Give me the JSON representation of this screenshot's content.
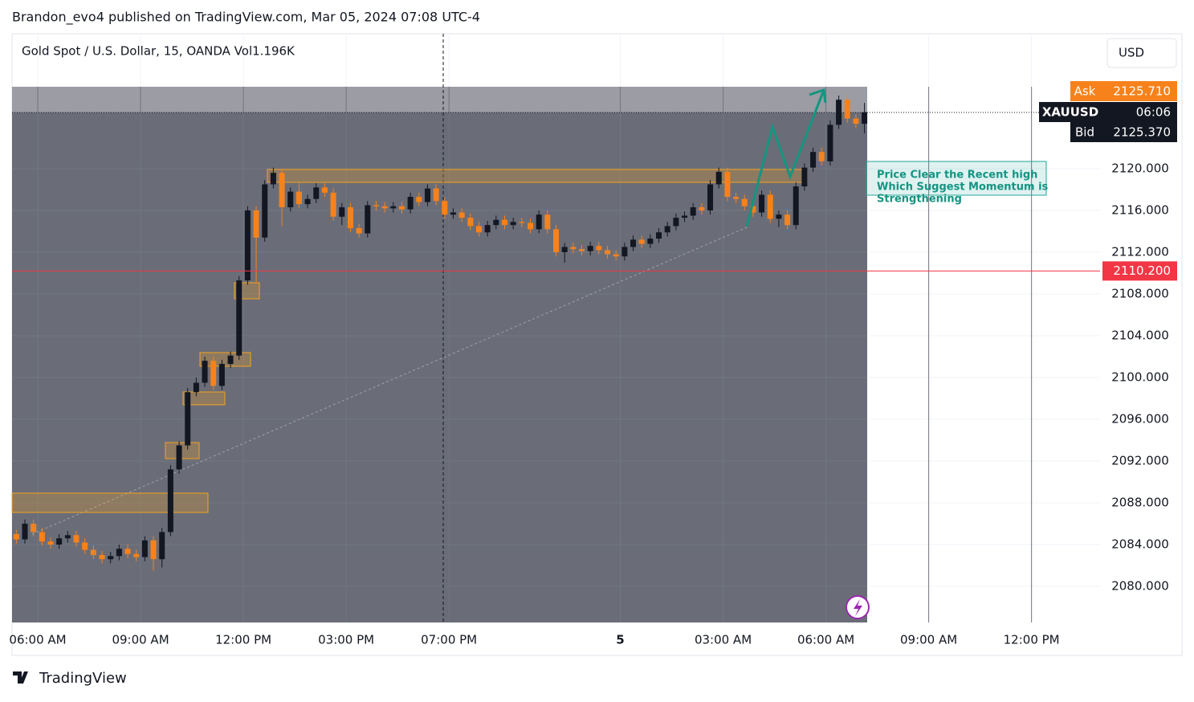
{
  "header": "Brandon_evo4 published on TradingView.com, Mar 05, 2024 07:08 UTC-4",
  "logo": "TradingView",
  "currency_button": "USD",
  "annotation": [
    "Price Clear the Recent high",
    "Which Suggest Momentum is",
    "Strengthening"
  ],
  "price_labels": {
    "ask_name": "Ask",
    "ask": "2125.710",
    "symbol": "XAUUSD",
    "countdown": "06:06",
    "bid_name": "Bid",
    "bid": "2125.370"
  },
  "chart_data": {
    "type": "candlestick",
    "title": "Gold Spot / U.S. Dollar, 15, OANDA  Vol1.196K",
    "up_color": "#131722",
    "down_color": "#f7821b",
    "xlim": [
      0,
      127
    ],
    "xticks": [
      {
        "value": 3,
        "label": "06:00 AM"
      },
      {
        "value": 15,
        "label": "09:00 AM"
      },
      {
        "value": 27,
        "label": "12:00 PM"
      },
      {
        "value": 39,
        "label": "03:00 PM"
      },
      {
        "value": 51,
        "label": "07:00 PM"
      },
      {
        "value": 71,
        "label": "5"
      },
      {
        "value": 83,
        "label": "03:00 AM"
      },
      {
        "value": 95,
        "label": "06:00 AM"
      },
      {
        "value": 107,
        "label": "09:00 AM"
      },
      {
        "value": 119,
        "label": "12:00 PM"
      }
    ],
    "ylim": [
      2076.54,
      2132.92
    ],
    "yticks": [
      {
        "value": 2080,
        "label": "2080.000"
      },
      {
        "value": 2084,
        "label": "2084.000"
      },
      {
        "value": 2088,
        "label": "2088.000"
      },
      {
        "value": 2092,
        "label": "2092.000"
      },
      {
        "value": 2096,
        "label": "2096.000"
      },
      {
        "value": 2100,
        "label": "2100.000"
      },
      {
        "value": 2104,
        "label": "2104.000"
      },
      {
        "value": 2108,
        "label": "2108.000"
      },
      {
        "value": 2112,
        "label": "2112.000"
      },
      {
        "value": 2116,
        "label": "2116.000"
      },
      {
        "value": 2120,
        "label": "2120.000"
      }
    ],
    "grid": true,
    "price_line": {
      "value": 2110.2,
      "label": "2110.200",
      "color": "#f23645"
    },
    "open": [
      2085,
      2084.5,
      2086,
      2085.2,
      2084.3,
      2084,
      2084.6,
      2084.9,
      2084.2,
      2083.5,
      2083,
      2082.6,
      2082.9,
      2083.6,
      2083.1,
      2082.8,
      2084.4,
      2082.6,
      2085.2,
      2091.2,
      2093.5,
      2098.6,
      2099.5,
      2101.6,
      2099.2,
      2101.3,
      2102.1,
      2109.3,
      2116,
      2113.4,
      2118.5,
      2119.6,
      2116.3,
      2117.8,
      2116.6,
      2117.1,
      2118.2,
      2117.7,
      2115.4,
      2116.3,
      2114.3,
      2113.8,
      2116.5,
      2116.4,
      2116.2,
      2116.4,
      2116.1,
      2117.3,
      2116.8,
      2118.1,
      2116.9,
      2115.6,
      2115.8,
      2115.3,
      2114.5,
      2113.9,
      2114.6,
      2115.1,
      2114.6,
      2114.9,
      2114.8,
      2114.2,
      2115.6,
      2114.2,
      2112,
      2112.5,
      2112.3,
      2112.1,
      2112.6,
      2112.2,
      2111.8,
      2111.6,
      2112.5,
      2113.2,
      2112.8,
      2113.3,
      2113.9,
      2114.5,
      2115.3,
      2115.5,
      2116.3,
      2116,
      2118.5,
      2119.7,
      2117.3,
      2117.1,
      2116.4,
      2115.8,
      2117.5,
      2115.2,
      2115.6,
      2114.6,
      2118.3,
      2120.1,
      2121.6,
      2120.7,
      2124.2,
      2126.6,
      2124.8,
      2124.3
    ],
    "high": [
      2085.4,
      2086.4,
      2086.4,
      2085.6,
      2084.7,
      2085,
      2085.3,
      2085.3,
      2084.6,
      2083.9,
      2083.4,
      2083.3,
      2084,
      2084,
      2083.5,
      2084.8,
      2084.8,
      2085.6,
      2091.6,
      2093.9,
      2099,
      2100,
      2102,
      2102,
      2101.7,
      2102.5,
      2109.7,
      2116.4,
      2116.4,
      2118.9,
      2120.1,
      2120,
      2118.2,
      2118.6,
      2117.5,
      2118.6,
      2118.6,
      2118.1,
      2116.7,
      2116.7,
      2114.7,
      2116.9,
      2116.9,
      2116.8,
      2116.8,
      2116.8,
      2117.7,
      2117.7,
      2118.5,
      2118.5,
      2117.3,
      2116.2,
      2116.2,
      2115.7,
      2114.9,
      2115,
      2115.5,
      2115.5,
      2115.3,
      2115.3,
      2115.2,
      2116,
      2116,
      2114.6,
      2112.9,
      2112.9,
      2112.7,
      2113,
      2113,
      2112.6,
      2112.2,
      2112.9,
      2113.6,
      2113.6,
      2113.7,
      2114.3,
      2114.9,
      2115.7,
      2115.9,
      2116.7,
      2116.7,
      2118.9,
      2120.1,
      2120.1,
      2117.7,
      2117.5,
      2116.8,
      2117.9,
      2117.9,
      2116,
      2116,
      2118.7,
      2120.5,
      2122,
      2122,
      2124.6,
      2127,
      2127,
      2125.2,
      2126.3
    ],
    "low": [
      2084.1,
      2084.1,
      2084.8,
      2083.9,
      2083.6,
      2083.6,
      2084.2,
      2083.8,
      2083.1,
      2082.6,
      2082.2,
      2082.2,
      2082.5,
      2082.7,
      2082.4,
      2082.4,
      2081.5,
      2081.8,
      2084.8,
      2090.8,
      2093.1,
      2098.2,
      2099.1,
      2098.8,
      2098.8,
      2100.9,
      2101.7,
      2108.9,
      2109,
      2113,
      2118.1,
      2114.5,
      2115.9,
      2116.2,
      2116.2,
      2116.7,
      2117.3,
      2115,
      2114.6,
      2113.9,
      2113.4,
      2113.4,
      2116,
      2115.8,
      2115.8,
      2115.7,
      2115.7,
      2116.4,
      2116.4,
      2116.5,
      2115.2,
      2115.2,
      2114.9,
      2114.1,
      2113.5,
      2113.5,
      2114.2,
      2114.2,
      2114.2,
      2114.4,
      2113.8,
      2113.8,
      2113.8,
      2111.6,
      2111,
      2111.9,
      2111.7,
      2111.7,
      2111.8,
      2111.4,
      2111.2,
      2111.2,
      2112.1,
      2112.4,
      2112.4,
      2112.9,
      2113.5,
      2114.1,
      2114.9,
      2115.1,
      2115.6,
      2115.6,
      2118.1,
      2116.9,
      2116.7,
      2116,
      2115.4,
      2115.4,
      2114.8,
      2114.4,
      2114.2,
      2114.2,
      2117.9,
      2119.7,
      2120.3,
      2120.3,
      2123.8,
      2124.4,
      2123.9,
      2123.4
    ],
    "close": [
      2084.5,
      2086,
      2085.2,
      2084.3,
      2084,
      2084.6,
      2084.9,
      2084.2,
      2083.5,
      2083,
      2082.6,
      2082.9,
      2083.6,
      2083.1,
      2082.8,
      2084.4,
      2082.6,
      2085.2,
      2091.2,
      2093.5,
      2098.6,
      2099.5,
      2101.6,
      2099.2,
      2101.3,
      2102.1,
      2109.3,
      2116,
      2113.4,
      2118.5,
      2119.6,
      2116.3,
      2117.8,
      2116.6,
      2117.1,
      2118.2,
      2117.7,
      2115.4,
      2116.3,
      2114.3,
      2113.8,
      2116.5,
      2116.4,
      2116.2,
      2116.4,
      2116.1,
      2117.3,
      2116.8,
      2118.1,
      2116.9,
      2115.6,
      2115.8,
      2115.3,
      2114.5,
      2113.9,
      2114.6,
      2115.1,
      2114.6,
      2114.9,
      2114.8,
      2114.2,
      2115.6,
      2114.2,
      2112,
      2112.5,
      2112.3,
      2112.1,
      2112.6,
      2112.2,
      2111.8,
      2111.6,
      2112.5,
      2113.2,
      2112.8,
      2113.3,
      2113.9,
      2114.5,
      2115.3,
      2115.5,
      2116.3,
      2116,
      2118.5,
      2119.7,
      2117.3,
      2117.1,
      2116.4,
      2115.8,
      2117.5,
      2115.2,
      2115.6,
      2114.6,
      2118.3,
      2120.1,
      2121.6,
      2120.7,
      2124.2,
      2126.6,
      2124.8,
      2124.3,
      2125.4
    ]
  }
}
